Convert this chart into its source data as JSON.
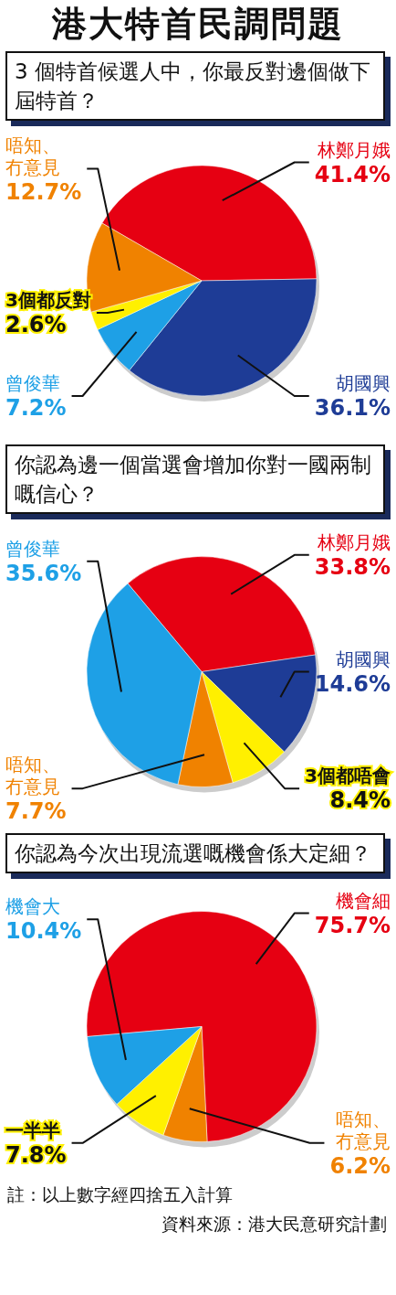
{
  "chart_data": [
    {
      "type": "pie",
      "title": "港大特首民調問題",
      "subtitle": "3 個特首候選人中，你最反對邊個做下屆特首？",
      "categories": [
        "林鄭月娥",
        "胡國興",
        "曾俊華",
        "3個都反對",
        "唔知、冇意見"
      ],
      "values": [
        41.4,
        36.1,
        7.2,
        2.6,
        12.7
      ],
      "colors": [
        "#e60012",
        "#1e3c96",
        "#1ea0e6",
        "#fff000",
        "#f08200"
      ],
      "value_labels": [
        "41.4%",
        "36.1%",
        "7.2%",
        "2.6%",
        "12.7%"
      ]
    },
    {
      "type": "pie",
      "title": "你認為邊一個當選會增加你對一國兩制嘅信心？",
      "categories": [
        "林鄭月娥",
        "胡國興",
        "3個都唔會",
        "唔知、冇意見",
        "曾俊華"
      ],
      "values": [
        33.8,
        14.6,
        8.4,
        7.7,
        35.6
      ],
      "colors": [
        "#e60012",
        "#1e3c96",
        "#fff000",
        "#f08200",
        "#1ea0e6"
      ],
      "value_labels": [
        "33.8%",
        "14.6%",
        "8.4%",
        "7.7%",
        "35.6%"
      ]
    },
    {
      "type": "pie",
      "title": "你認為今次出現流選嘅機會係大定細？",
      "categories": [
        "機會細",
        "唔知、冇意見",
        "一半半",
        "機會大"
      ],
      "values": [
        75.7,
        6.2,
        7.8,
        10.4
      ],
      "colors": [
        "#e60012",
        "#f08200",
        "#fff000",
        "#1ea0e6"
      ],
      "value_labels": [
        "75.7%",
        "6.2%",
        "7.8%",
        "10.4%"
      ],
      "annotations": [
        "註：以上數字經四捨五入計算",
        "資料來源：港大民意研究計劃"
      ]
    }
  ]
}
